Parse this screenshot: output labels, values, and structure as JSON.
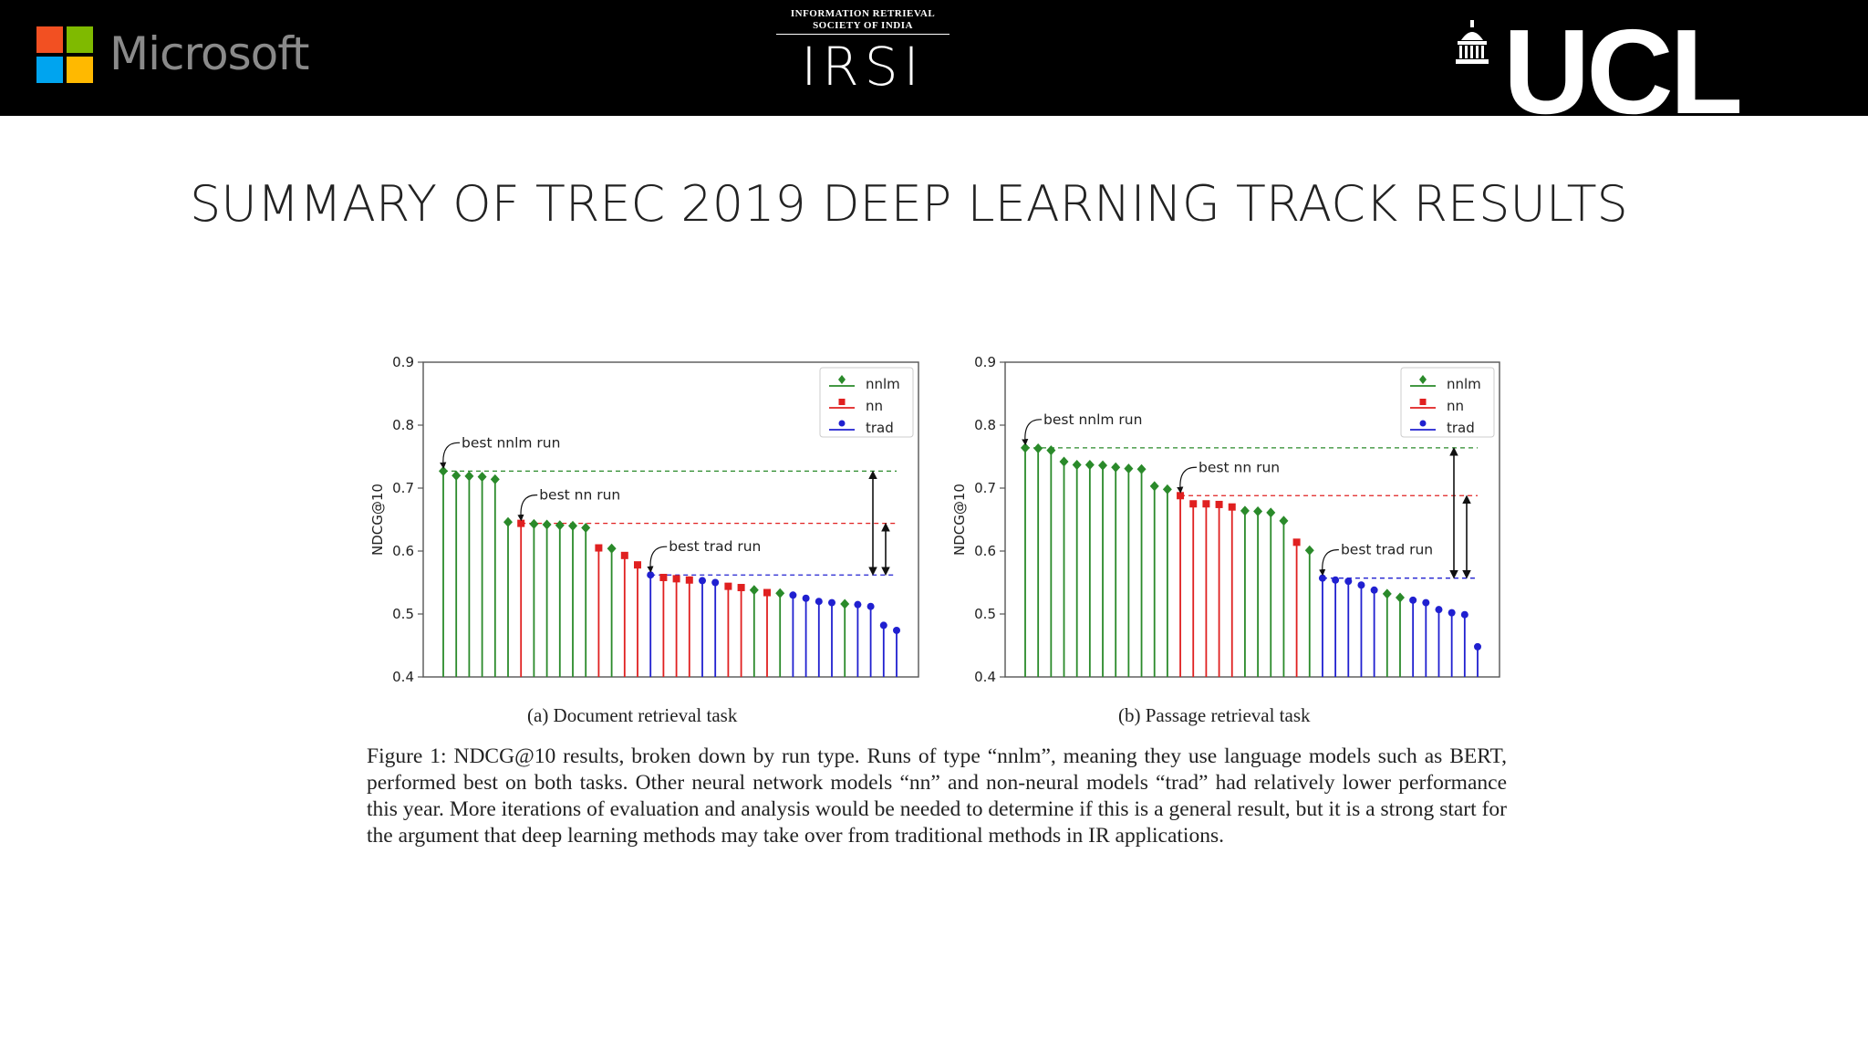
{
  "header": {
    "microsoft": "Microsoft",
    "irsi_line1": "INFORMATION RETRIEVAL",
    "irsi_line2": "SOCIETY OF INDIA",
    "irsi_mark": "IRSI",
    "ucl": "UCL",
    "colors": {
      "ms_red": "#f25022",
      "ms_green": "#7fba00",
      "ms_blue": "#00a4ef",
      "ms_yellow": "#ffb900"
    }
  },
  "title": "SUMMARY OF TREC 2019 DEEP LEARNING TRACK RESULTS",
  "figure": {
    "subcaption_a": "(a) Document retrieval task",
    "subcaption_b": "(b) Passage retrieval task",
    "caption": "Figure 1: NDCG@10 results, broken down by run type. Runs of type “nnlm”, meaning they use language models such as BERT, performed best on both tasks. Other neural network models “nn” and non-neural models “trad” had relatively lower performance this year. More iterations of evaluation and analysis would be needed to determine if this is a general result, but it is a strong start for the argument that deep learning methods may take over from traditional methods in IR applications."
  },
  "chart_data": [
    {
      "type": "scatter",
      "subtype": "stem",
      "ylabel": "NDCG@10",
      "ylim": [
        0.4,
        0.9
      ],
      "yticks": [
        "0.4",
        "0.5",
        "0.6",
        "0.7",
        "0.8",
        "0.9"
      ],
      "legend": {
        "placement": "top-right",
        "entries": [
          "nnlm",
          "nn",
          "trad"
        ]
      },
      "colors": {
        "nnlm": "#2a8a2a",
        "nn": "#e02020",
        "trad": "#2020d0"
      },
      "runs": [
        {
          "type": "nnlm",
          "value": 0.727
        },
        {
          "type": "nnlm",
          "value": 0.72
        },
        {
          "type": "nnlm",
          "value": 0.719
        },
        {
          "type": "nnlm",
          "value": 0.718
        },
        {
          "type": "nnlm",
          "value": 0.714
        },
        {
          "type": "nnlm",
          "value": 0.646
        },
        {
          "type": "nn",
          "value": 0.644
        },
        {
          "type": "nnlm",
          "value": 0.643
        },
        {
          "type": "nnlm",
          "value": 0.642
        },
        {
          "type": "nnlm",
          "value": 0.641
        },
        {
          "type": "nnlm",
          "value": 0.64
        },
        {
          "type": "nnlm",
          "value": 0.637
        },
        {
          "type": "nn",
          "value": 0.605
        },
        {
          "type": "nnlm",
          "value": 0.604
        },
        {
          "type": "nn",
          "value": 0.593
        },
        {
          "type": "nn",
          "value": 0.578
        },
        {
          "type": "trad",
          "value": 0.562
        },
        {
          "type": "nn",
          "value": 0.558
        },
        {
          "type": "nn",
          "value": 0.556
        },
        {
          "type": "nn",
          "value": 0.554
        },
        {
          "type": "trad",
          "value": 0.553
        },
        {
          "type": "trad",
          "value": 0.55
        },
        {
          "type": "nn",
          "value": 0.544
        },
        {
          "type": "nn",
          "value": 0.542
        },
        {
          "type": "nnlm",
          "value": 0.538
        },
        {
          "type": "nn",
          "value": 0.534
        },
        {
          "type": "nnlm",
          "value": 0.533
        },
        {
          "type": "trad",
          "value": 0.53
        },
        {
          "type": "trad",
          "value": 0.525
        },
        {
          "type": "trad",
          "value": 0.52
        },
        {
          "type": "trad",
          "value": 0.518
        },
        {
          "type": "nnlm",
          "value": 0.516
        },
        {
          "type": "trad",
          "value": 0.515
        },
        {
          "type": "trad",
          "value": 0.512
        },
        {
          "type": "trad",
          "value": 0.482
        },
        {
          "type": "trad",
          "value": 0.474
        }
      ],
      "annotations": [
        {
          "text": "best nnlm run",
          "value": 0.727,
          "run_index": 0
        },
        {
          "text": "best nn run",
          "value": 0.644,
          "run_index": 6
        },
        {
          "text": "best trad run",
          "value": 0.562,
          "run_index": 16
        }
      ],
      "reference_lines": [
        {
          "type": "nnlm",
          "value": 0.727
        },
        {
          "type": "nn",
          "value": 0.644
        },
        {
          "type": "trad",
          "value": 0.562
        }
      ]
    },
    {
      "type": "scatter",
      "subtype": "stem",
      "ylabel": "NDCG@10",
      "ylim": [
        0.4,
        0.9
      ],
      "yticks": [
        "0.4",
        "0.5",
        "0.6",
        "0.7",
        "0.8",
        "0.9"
      ],
      "legend": {
        "placement": "top-right",
        "entries": [
          "nnlm",
          "nn",
          "trad"
        ]
      },
      "colors": {
        "nnlm": "#2a8a2a",
        "nn": "#e02020",
        "trad": "#2020d0"
      },
      "runs": [
        {
          "type": "nnlm",
          "value": 0.764
        },
        {
          "type": "nnlm",
          "value": 0.763
        },
        {
          "type": "nnlm",
          "value": 0.76
        },
        {
          "type": "nnlm",
          "value": 0.742
        },
        {
          "type": "nnlm",
          "value": 0.737
        },
        {
          "type": "nnlm",
          "value": 0.737
        },
        {
          "type": "nnlm",
          "value": 0.736
        },
        {
          "type": "nnlm",
          "value": 0.733
        },
        {
          "type": "nnlm",
          "value": 0.731
        },
        {
          "type": "nnlm",
          "value": 0.73
        },
        {
          "type": "nnlm",
          "value": 0.703
        },
        {
          "type": "nnlm",
          "value": 0.698
        },
        {
          "type": "nn",
          "value": 0.688
        },
        {
          "type": "nn",
          "value": 0.675
        },
        {
          "type": "nn",
          "value": 0.675
        },
        {
          "type": "nn",
          "value": 0.674
        },
        {
          "type": "nn",
          "value": 0.67
        },
        {
          "type": "nnlm",
          "value": 0.664
        },
        {
          "type": "nnlm",
          "value": 0.663
        },
        {
          "type": "nnlm",
          "value": 0.661
        },
        {
          "type": "nnlm",
          "value": 0.648
        },
        {
          "type": "nn",
          "value": 0.614
        },
        {
          "type": "nnlm",
          "value": 0.601
        },
        {
          "type": "trad",
          "value": 0.557
        },
        {
          "type": "trad",
          "value": 0.554
        },
        {
          "type": "trad",
          "value": 0.552
        },
        {
          "type": "trad",
          "value": 0.546
        },
        {
          "type": "trad",
          "value": 0.538
        },
        {
          "type": "nnlm",
          "value": 0.532
        },
        {
          "type": "nnlm",
          "value": 0.526
        },
        {
          "type": "trad",
          "value": 0.522
        },
        {
          "type": "trad",
          "value": 0.518
        },
        {
          "type": "trad",
          "value": 0.507
        },
        {
          "type": "trad",
          "value": 0.502
        },
        {
          "type": "trad",
          "value": 0.499
        },
        {
          "type": "trad",
          "value": 0.448
        }
      ],
      "annotations": [
        {
          "text": "best nnlm run",
          "value": 0.764,
          "run_index": 0
        },
        {
          "text": "best nn run",
          "value": 0.688,
          "run_index": 12
        },
        {
          "text": "best trad run",
          "value": 0.557,
          "run_index": 23
        }
      ],
      "reference_lines": [
        {
          "type": "nnlm",
          "value": 0.764
        },
        {
          "type": "nn",
          "value": 0.688
        },
        {
          "type": "trad",
          "value": 0.557
        }
      ]
    }
  ]
}
